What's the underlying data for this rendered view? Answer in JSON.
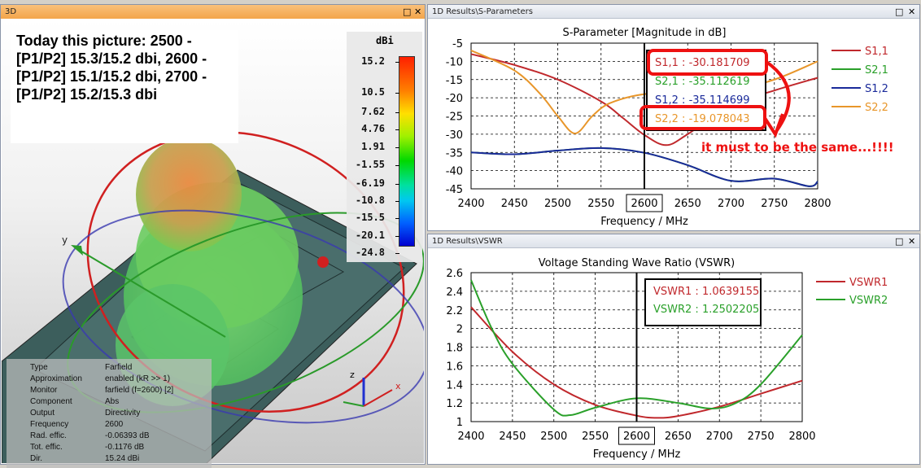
{
  "window_3d": {
    "title": "3D",
    "note_lines": [
      "Today this picture: 2500 -",
      "[P1/P2] 15.3/15.2 dbi, 2600 -",
      "[P1/P2] 15.1/15.2 dbi, 2700 -",
      "[P1/P2] 15.2/15.3 dbi"
    ],
    "colorbar": {
      "unit": "dBi",
      "labels": [
        "15.2",
        "10.5",
        "7.62",
        "4.76",
        "1.91",
        "-1.55",
        "-6.19",
        "-10.8",
        "-15.5",
        "-20.1",
        "-24.8"
      ]
    },
    "axis_labels": {
      "y": "y",
      "z": "z",
      "x": "x"
    },
    "info": [
      {
        "label": "Type",
        "value": "Farfield"
      },
      {
        "label": "Approximation",
        "value": "enabled (kR >> 1)"
      },
      {
        "label": "Monitor",
        "value": "farfield (f=2600) [2]"
      },
      {
        "label": "Component",
        "value": "Abs"
      },
      {
        "label": "Output",
        "value": "Directivity"
      },
      {
        "label": "Frequency",
        "value": "2600"
      },
      {
        "label": "Rad. effic.",
        "value": "-0.06393 dB"
      },
      {
        "label": "Tot. effic.",
        "value": "-0.1176 dB"
      },
      {
        "label": "Dir.",
        "value": "15.24 dBi"
      }
    ]
  },
  "window_sparam": {
    "title": "1D Results\\S-Parameters"
  },
  "window_vswr": {
    "title": "1D Results\\VSWR"
  },
  "window_buttons": {
    "maximize": "□",
    "close": "✕"
  },
  "annotation": "it must to be the same...!!!!",
  "colors": {
    "s11": "#c0282c",
    "s21": "#2aa02a",
    "s12": "#1a2a9a",
    "s22": "#e8962a",
    "annot": "#ee1111"
  },
  "chart_data": [
    {
      "type": "line",
      "title": "S-Parameter [Magnitude in dB]",
      "xlabel": "Frequency / MHz",
      "ylabel": "",
      "xlim": [
        2400,
        2800
      ],
      "ylim": [
        -45,
        -5
      ],
      "xticks": [
        2400,
        2450,
        2500,
        2550,
        2600,
        2650,
        2700,
        2750,
        2800
      ],
      "yticks": [
        -5,
        -10,
        -15,
        -20,
        -25,
        -30,
        -35,
        -40,
        -45
      ],
      "grid": true,
      "legend": "right",
      "cursor_x": 2600,
      "marker_labels": [
        "S1,1 : -30.181709",
        "S2,1 : -35.112619",
        "S1,2 : -35.114699",
        "S2,2 : -19.078043"
      ],
      "series": [
        {
          "name": "S1,1",
          "color": "#c0282c",
          "x": [
            2400,
            2450,
            2500,
            2550,
            2575,
            2600,
            2625,
            2650,
            2700,
            2750,
            2800
          ],
          "y": [
            -8,
            -11,
            -15,
            -21,
            -25.5,
            -30.2,
            -33,
            -30,
            -22,
            -18,
            -14.5
          ]
        },
        {
          "name": "S2,1",
          "color": "#2aa02a",
          "x": [
            2400,
            2450,
            2500,
            2550,
            2600,
            2650,
            2700,
            2750,
            2790,
            2800
          ],
          "y": [
            -35,
            -35.5,
            -34.5,
            -33.8,
            -35.1,
            -38.5,
            -42.8,
            -42.2,
            -44.3,
            -43
          ]
        },
        {
          "name": "S1,2",
          "color": "#1a2a9a",
          "x": [
            2400,
            2450,
            2500,
            2550,
            2600,
            2650,
            2700,
            2750,
            2790,
            2800
          ],
          "y": [
            -35,
            -35.5,
            -34.5,
            -33.8,
            -35.1,
            -38.5,
            -42.8,
            -42.2,
            -44.3,
            -43
          ]
        },
        {
          "name": "S2,2",
          "color": "#e8962a",
          "x": [
            2400,
            2450,
            2480,
            2500,
            2520,
            2540,
            2560,
            2600,
            2650,
            2700,
            2750,
            2800
          ],
          "y": [
            -7,
            -12.5,
            -19,
            -25,
            -29.8,
            -25,
            -21.5,
            -19,
            -18.5,
            -18,
            -15,
            -10
          ]
        }
      ]
    },
    {
      "type": "line",
      "title": "Voltage Standing Wave Ratio (VSWR)",
      "xlabel": "Frequency / MHz",
      "ylabel": "",
      "xlim": [
        2400,
        2800
      ],
      "ylim": [
        1,
        2.6
      ],
      "xticks": [
        2400,
        2450,
        2500,
        2550,
        2600,
        2650,
        2700,
        2750,
        2800
      ],
      "yticks": [
        1,
        1.2,
        1.4,
        1.6,
        1.8,
        2,
        2.2,
        2.4,
        2.6
      ],
      "grid": true,
      "legend": "right",
      "cursor_x": 2600,
      "marker_labels": [
        "VSWR1 : 1.0639155",
        "VSWR2 : 1.2502205"
      ],
      "series": [
        {
          "name": "VSWR1",
          "color": "#c0282c",
          "x": [
            2400,
            2450,
            2500,
            2550,
            2600,
            2625,
            2650,
            2700,
            2750,
            2800
          ],
          "y": [
            2.23,
            1.75,
            1.4,
            1.18,
            1.064,
            1.04,
            1.06,
            1.16,
            1.3,
            1.44
          ]
        },
        {
          "name": "VSWR2",
          "color": "#2aa02a",
          "x": [
            2400,
            2425,
            2450,
            2500,
            2520,
            2550,
            2600,
            2650,
            2690,
            2720,
            2750,
            2800
          ],
          "y": [
            2.52,
            2.0,
            1.62,
            1.13,
            1.07,
            1.15,
            1.25,
            1.2,
            1.14,
            1.2,
            1.4,
            1.93
          ]
        }
      ]
    }
  ]
}
